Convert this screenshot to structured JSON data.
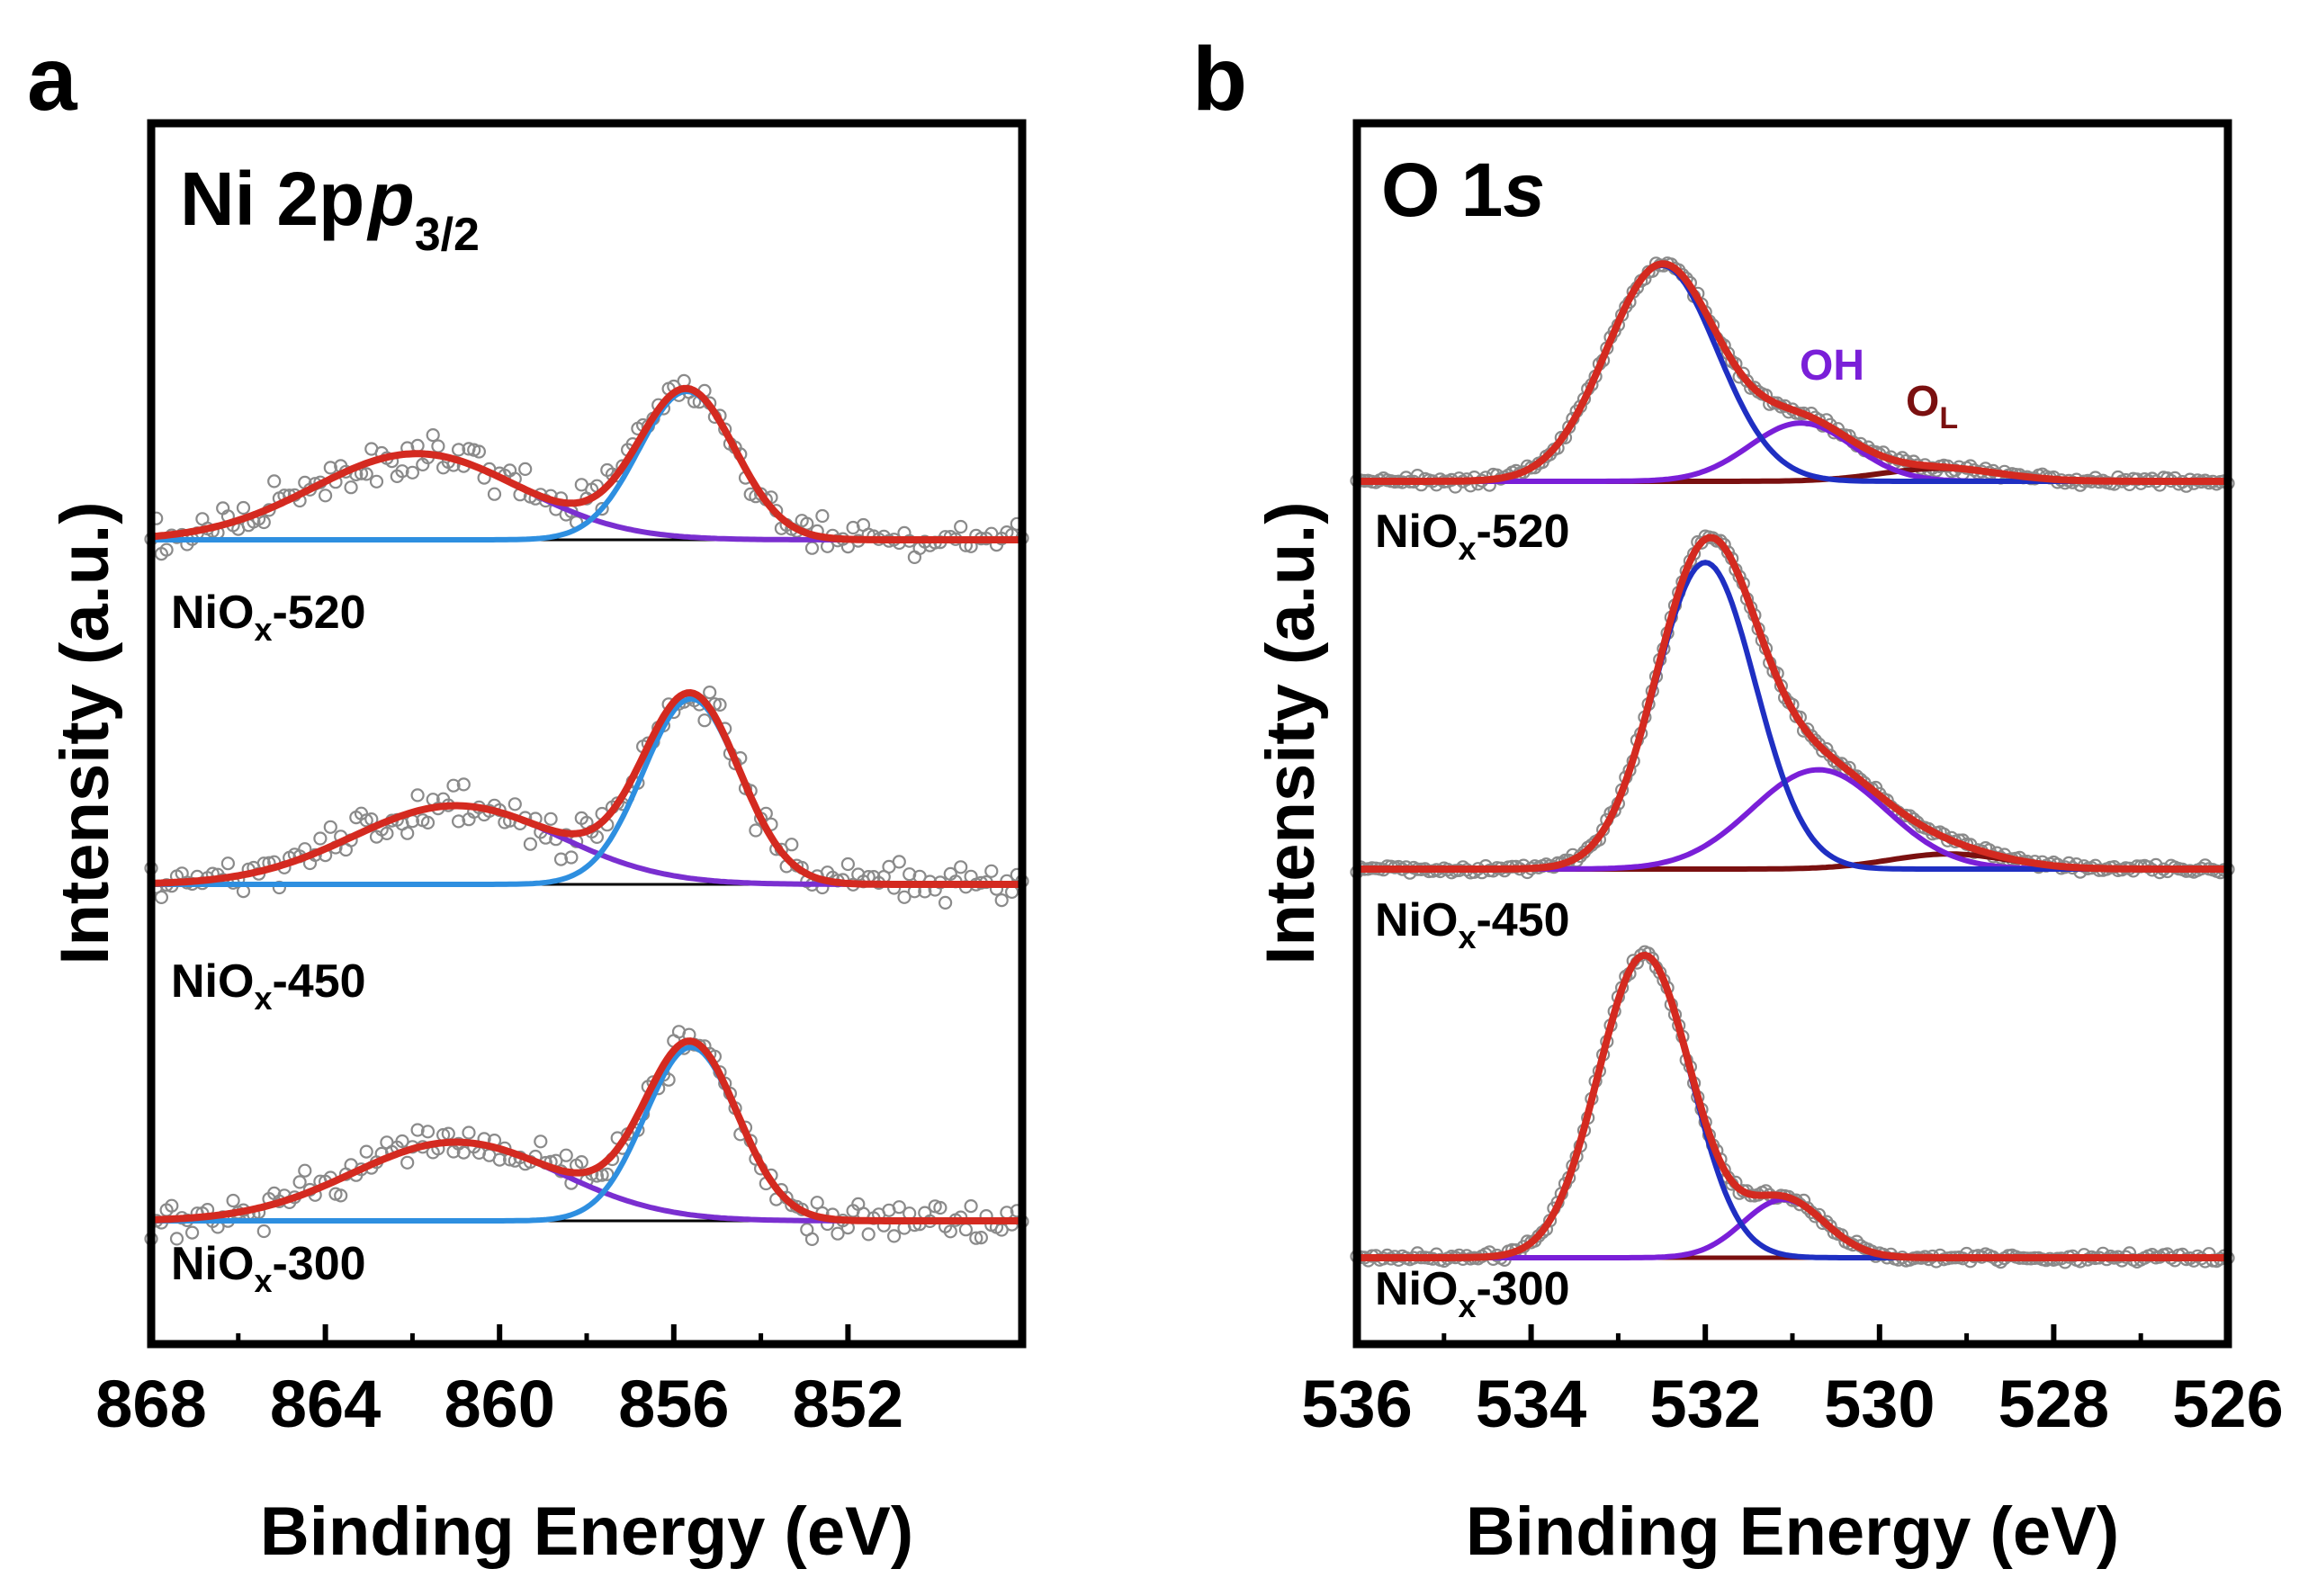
{
  "chart_data": [
    {
      "type": "line",
      "panel_letter": "a",
      "title": "Ni 2p",
      "title_sub": "3/2",
      "xlabel": "Binding Energy (eV)",
      "ylabel": "Intensity (a.u.)",
      "xlim": [
        868,
        848
      ],
      "x_ticks": [
        868,
        864,
        860,
        856,
        852
      ],
      "y_ticks": false,
      "fit_colors": {
        "envelope": "#d42a20",
        "main": "#2e8fe0",
        "satellite": "#7a2fd0",
        "baseline": "#000000",
        "points": "#8a8a8a"
      },
      "samples": [
        {
          "label_prefix": "NiO",
          "label_sub": "x",
          "label_suffix": "-520",
          "main_peak": {
            "center": 855.7,
            "height": 1.0,
            "fwhm": 2.6
          },
          "satellite_peak": {
            "center": 861.9,
            "height": 0.58,
            "fwhm": 5.6
          }
        },
        {
          "label_prefix": "NiO",
          "label_sub": "x",
          "label_suffix": "-450",
          "main_peak": {
            "center": 855.6,
            "height": 1.25,
            "fwhm": 2.6
          },
          "satellite_peak": {
            "center": 861.0,
            "height": 0.53,
            "fwhm": 5.6
          }
        },
        {
          "label_prefix": "NiO",
          "label_sub": "x",
          "label_suffix": "-300",
          "main_peak": {
            "center": 855.6,
            "height": 1.17,
            "fwhm": 2.5
          },
          "satellite_peak": {
            "center": 861.0,
            "height": 0.53,
            "fwhm": 5.6
          }
        }
      ]
    },
    {
      "type": "line",
      "panel_letter": "b",
      "title": "O 1",
      "title_italic": "s",
      "xlabel": "Binding Energy (eV)",
      "ylabel": "Intensity (a.u.)",
      "xlim": [
        536,
        526
      ],
      "x_ticks": [
        536,
        534,
        532,
        530,
        528,
        526
      ],
      "y_ticks": false,
      "component_labels": {
        "oh": "OH",
        "ol": "O",
        "ol_sub": "L"
      },
      "fit_colors": {
        "envelope": "#d42a20",
        "main": "#1f2fc2",
        "oh": "#7a1fd8",
        "ol": "#7a1010",
        "points": "#8a8a8a"
      },
      "samples": [
        {
          "label_prefix": "NiO",
          "label_sub": "x",
          "label_suffix": "-520",
          "lattice_peak": {
            "center": 532.5,
            "height": 1.0,
            "fwhm": 1.5
          },
          "oh_peak": {
            "center": 530.9,
            "height": 0.27,
            "fwhm": 1.4
          },
          "ol_peak": {
            "center": 529.3,
            "height": 0.06,
            "fwhm": 1.6
          }
        },
        {
          "label_prefix": "NiO",
          "label_sub": "x",
          "label_suffix": "-450",
          "lattice_peak": {
            "center": 532.0,
            "height": 1.42,
            "fwhm": 1.35
          },
          "oh_peak": {
            "center": 530.7,
            "height": 0.46,
            "fwhm": 1.8
          },
          "ol_peak": {
            "center": 529.2,
            "height": 0.07,
            "fwhm": 1.6
          }
        },
        {
          "label_prefix": "NiO",
          "label_sub": "x",
          "label_suffix": "-300",
          "lattice_peak": {
            "center": 532.7,
            "height": 1.4,
            "fwhm": 1.25
          },
          "oh_peak": {
            "center": 531.1,
            "height": 0.27,
            "fwhm": 1.1
          },
          "ol_peak": {
            "center": 529.8,
            "height": 0.0,
            "fwhm": 1.5
          }
        }
      ]
    }
  ]
}
